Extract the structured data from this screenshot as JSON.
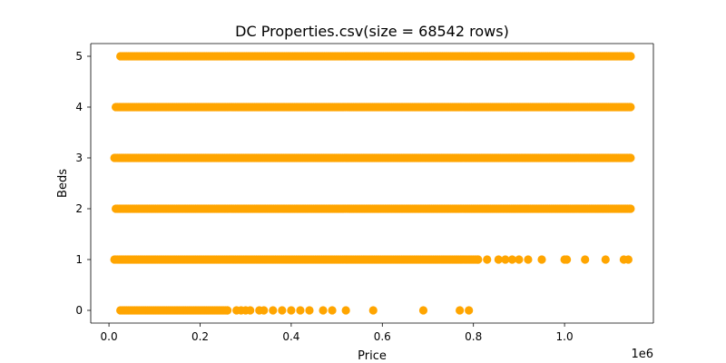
{
  "chart_data": {
    "type": "scatter",
    "title": "DC Properties.csv(size = 68542 rows)",
    "xlabel": "Price",
    "ylabel": "Beds",
    "x_scale_note": "1e6",
    "xlim": [
      -40000,
      1195000
    ],
    "ylim": [
      -0.25,
      5.25
    ],
    "x_ticks": [
      0.0,
      0.2,
      0.4,
      0.6,
      0.8,
      1.0
    ],
    "x_tick_labels": [
      "0.0",
      "0.2",
      "0.4",
      "0.6",
      "0.8",
      "1.0"
    ],
    "y_ticks": [
      0,
      1,
      2,
      3,
      4,
      5
    ],
    "y_tick_labels": [
      "0",
      "1",
      "2",
      "3",
      "4",
      "5"
    ],
    "grid": false,
    "marker_color": "#ffa500",
    "series": [
      {
        "points": [
          {
            "beds": 5,
            "dense_from": 25000,
            "dense_to": 1145000,
            "extra_x": []
          },
          {
            "beds": 4,
            "dense_from": 15000,
            "dense_to": 1145000,
            "extra_x": []
          },
          {
            "beds": 3,
            "dense_from": 12000,
            "dense_to": 1145000,
            "extra_x": []
          },
          {
            "beds": 2,
            "dense_from": 15000,
            "dense_to": 1145000,
            "extra_x": []
          },
          {
            "beds": 1,
            "dense_from": 12000,
            "dense_to": 810000,
            "extra_x": [
              830000,
              855000,
              870000,
              885000,
              900000,
              920000,
              950000,
              1000000,
              1005000,
              1045000,
              1090000,
              1130000,
              1140000
            ]
          },
          {
            "beds": 0,
            "dense_from": 25000,
            "dense_to": 260000,
            "extra_x": [
              280000,
              290000,
              300000,
              310000,
              330000,
              340000,
              360000,
              380000,
              400000,
              420000,
              440000,
              470000,
              490000,
              520000,
              580000,
              690000,
              770000,
              790000
            ]
          }
        ]
      }
    ]
  }
}
